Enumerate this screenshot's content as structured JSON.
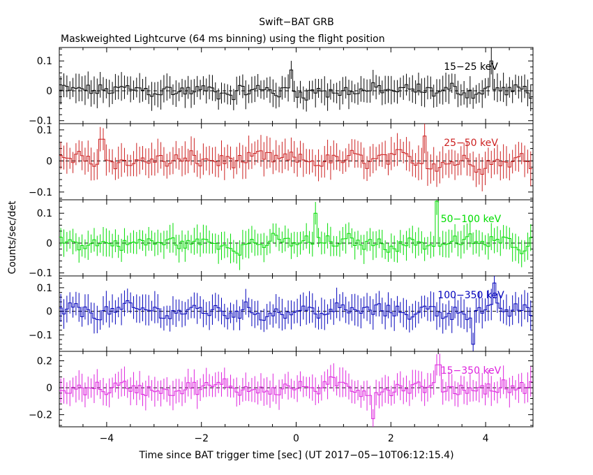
{
  "chart_data": {
    "type": "line",
    "title": "Swift−BAT GRB",
    "subtitle": "Maskweighted Lightcurve (64 ms binning) using the flight position",
    "xlabel": "Time since BAT trigger time [sec] (UT 2017−05−10T06:12:15.4)",
    "ylabel": "Counts/sec/det",
    "xlim": [
      -5,
      5
    ],
    "x_ticks": [
      -4,
      -2,
      0,
      2,
      4
    ],
    "x_tick_labels": [
      "−4",
      "−2",
      "0",
      "2",
      "4"
    ],
    "bin_width_sec": 0.064,
    "grid": false,
    "panels": [
      {
        "name": "15−25 keV",
        "color": "#000000",
        "ylim": [
          -0.11,
          0.145
        ],
        "y_ticks": [
          -0.1,
          0,
          0.1
        ],
        "y_tick_labels": [
          "−0.1",
          "0",
          "0.1"
        ],
        "amplitude": 0.026,
        "error": 0.04,
        "spikes": [
          {
            "t": 4.1,
            "v": 0.1
          },
          {
            "t": -0.1,
            "v": 0.07
          }
        ]
      },
      {
        "name": "25−50 keV",
        "color": "#cc1f1f",
        "ylim": [
          -0.125,
          0.12
        ],
        "y_ticks": [
          -0.1,
          0,
          0.1
        ],
        "y_tick_labels": [
          "−0.1",
          "0",
          "0.1"
        ],
        "amplitude": 0.028,
        "error": 0.045,
        "spikes": [
          {
            "t": 2.7,
            "v": 0.08
          },
          {
            "t": -4.1,
            "v": 0.07
          }
        ]
      },
      {
        "name": "50−100 keV",
        "color": "#00dd00",
        "ylim": [
          -0.11,
          0.145
        ],
        "y_ticks": [
          -0.1,
          0,
          0.1
        ],
        "y_tick_labels": [
          "−0.1",
          "0",
          "0.1"
        ],
        "amplitude": 0.026,
        "error": 0.04,
        "spikes": [
          {
            "t": 2.97,
            "v": 0.14
          },
          {
            "t": 0.4,
            "v": 0.1
          }
        ]
      },
      {
        "name": "100−350 keV",
        "color": "#0000bb",
        "ylim": [
          -0.17,
          0.15
        ],
        "y_ticks": [
          -0.1,
          0,
          0.1
        ],
        "y_tick_labels": [
          "−0.1",
          "0",
          "0.1"
        ],
        "amplitude": 0.034,
        "error": 0.055,
        "spikes": [
          {
            "t": 3.75,
            "v": -0.14
          },
          {
            "t": 4.2,
            "v": 0.12
          }
        ]
      },
      {
        "name": "15−350 keV",
        "color": "#dd22dd",
        "ylim": [
          -0.29,
          0.27
        ],
        "y_ticks": [
          -0.2,
          0,
          0.2
        ],
        "y_tick_labels": [
          "−0.2",
          "0",
          "0.2"
        ],
        "amplitude": 0.06,
        "error": 0.09,
        "spikes": [
          {
            "t": 1.6,
            "v": -0.23
          },
          {
            "t": 3.0,
            "v": 0.17
          }
        ]
      }
    ]
  }
}
